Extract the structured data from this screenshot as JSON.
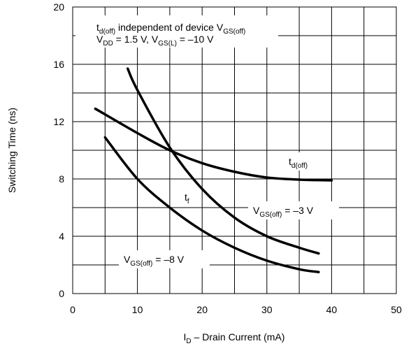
{
  "chart_data": {
    "type": "line",
    "xlabel": [
      "I",
      "D",
      " – Drain Current (mA)"
    ],
    "ylabel": "Switching Time (ns)",
    "xlim": [
      0,
      50
    ],
    "ylim": [
      0,
      20
    ],
    "xticks": [
      0,
      10,
      20,
      30,
      40,
      50
    ],
    "yticks": [
      0,
      4,
      8,
      12,
      16,
      20
    ],
    "xminor": [
      5,
      15,
      25,
      35,
      45
    ],
    "yminor": [
      2,
      6,
      10,
      14,
      18
    ],
    "grid": true,
    "series": [
      {
        "color": "#000000",
        "x": [
          3.5,
          10,
          15,
          20,
          25,
          30,
          35,
          40
        ],
        "values": [
          12.9,
          11.2,
          10.0,
          9.1,
          8.5,
          8.1,
          7.95,
          7.9
        ]
      },
      {
        "color": "#000000",
        "x": [
          8.5,
          10,
          15,
          20,
          25,
          30,
          35,
          38
        ],
        "values": [
          15.7,
          14.2,
          10.2,
          7.3,
          5.3,
          4.0,
          3.2,
          2.8
        ]
      },
      {
        "color": "#000000",
        "x": [
          5,
          10,
          15,
          20,
          25,
          30,
          35,
          38
        ],
        "values": [
          10.9,
          8.0,
          6.0,
          4.4,
          3.2,
          2.3,
          1.7,
          1.5
        ]
      }
    ],
    "annotations": [
      {
        "parts": [
          "t",
          "d(off)",
          " independent of device V",
          "GS(off)"
        ]
      },
      {
        "parts": [
          "V",
          "DD",
          " = 1.5 V, V",
          "GS(L)",
          " = –10 V"
        ]
      },
      {
        "parts": [
          "t",
          "d(off)"
        ]
      },
      {
        "parts": [
          "t",
          "f"
        ]
      },
      {
        "parts": [
          "V",
          "GS(off)",
          " = –3 V"
        ]
      },
      {
        "parts": [
          "V",
          "GS(off)",
          " = –8 V"
        ]
      }
    ]
  }
}
